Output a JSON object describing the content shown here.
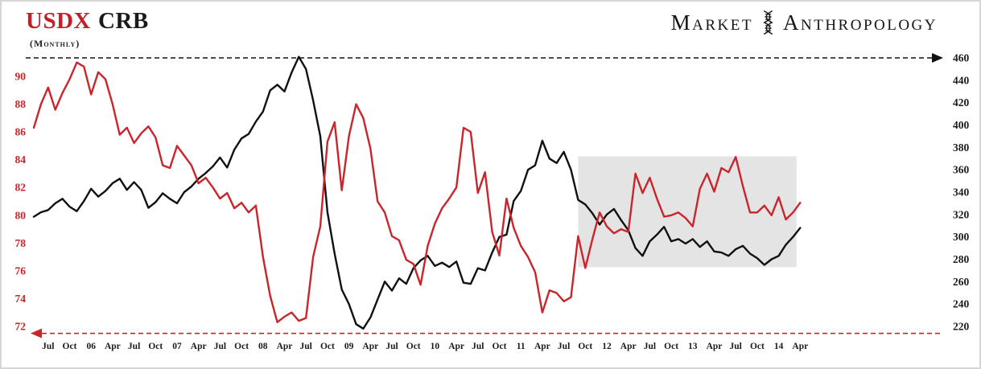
{
  "header": {
    "title_primary": "USDX",
    "title_secondary": "CRB",
    "subtitle": "(Monthly)",
    "logo": {
      "market": "Market",
      "anthropology": "Anthropology",
      "icon": "dna-icon"
    }
  },
  "chart_data": {
    "type": "line",
    "title": "USDX vs CRB (Monthly)",
    "start_month": "2005-05",
    "end_month": "2014-04",
    "grid": false,
    "legend": "none (series colors match title words)",
    "x_ticks": [
      [
        2,
        "Jul"
      ],
      [
        5,
        "Oct"
      ],
      [
        8,
        "06"
      ],
      [
        11,
        "Apr"
      ],
      [
        14,
        "Jul"
      ],
      [
        17,
        "Oct"
      ],
      [
        20,
        "07"
      ],
      [
        23,
        "Apr"
      ],
      [
        26,
        "Jul"
      ],
      [
        29,
        "Oct"
      ],
      [
        32,
        "08"
      ],
      [
        35,
        "Apr"
      ],
      [
        38,
        "Jul"
      ],
      [
        41,
        "Oct"
      ],
      [
        44,
        "09"
      ],
      [
        47,
        "Apr"
      ],
      [
        50,
        "Jul"
      ],
      [
        53,
        "Oct"
      ],
      [
        56,
        "10"
      ],
      [
        59,
        "Apr"
      ],
      [
        62,
        "Jul"
      ],
      [
        65,
        "Oct"
      ],
      [
        68,
        "11"
      ],
      [
        71,
        "Apr"
      ],
      [
        74,
        "Jul"
      ],
      [
        77,
        "Oct"
      ],
      [
        80,
        "12"
      ],
      [
        83,
        "Apr"
      ],
      [
        86,
        "Jul"
      ],
      [
        89,
        "Oct"
      ],
      [
        92,
        "13"
      ],
      [
        95,
        "Apr"
      ],
      [
        98,
        "Jul"
      ],
      [
        101,
        "Oct"
      ],
      [
        104,
        "14"
      ],
      [
        107,
        "Apr"
      ]
    ],
    "left_axis": {
      "name": "USDX",
      "color": "#c9252b",
      "min": 72,
      "max": 90,
      "tick_step": 2,
      "ticks": [
        90,
        88,
        86,
        84,
        82,
        80,
        78,
        76,
        74,
        72
      ]
    },
    "right_axis": {
      "name": "CRB",
      "color": "#1b1b1b",
      "min": 220,
      "max": 460,
      "tick_step": 20,
      "ticks": [
        460,
        440,
        420,
        400,
        380,
        360,
        340,
        320,
        300,
        280,
        260,
        240,
        220
      ]
    },
    "series": [
      {
        "name": "CRB",
        "axis": "right",
        "color": "#111111",
        "values": [
          318,
          322,
          324,
          330,
          334,
          327,
          323,
          332,
          343,
          336,
          341,
          348,
          352,
          342,
          349,
          342,
          326,
          331,
          339,
          334,
          330,
          340,
          345,
          352,
          357,
          363,
          371,
          362,
          378,
          388,
          392,
          403,
          412,
          431,
          436,
          430,
          447,
          461,
          450,
          422,
          390,
          322,
          285,
          253,
          240,
          222,
          218,
          228,
          244,
          260,
          252,
          263,
          258,
          272,
          279,
          283,
          274,
          277,
          273,
          278,
          259,
          258,
          272,
          270,
          286,
          300,
          302,
          332,
          341,
          360,
          364,
          386,
          370,
          366,
          376,
          360,
          333,
          329,
          321,
          311,
          320,
          325,
          315,
          306,
          290,
          283,
          296,
          302,
          309,
          296,
          298,
          294,
          298,
          291,
          296,
          287,
          286,
          283,
          289,
          292,
          285,
          281,
          275,
          280,
          283,
          293,
          300,
          308
        ]
      },
      {
        "name": "USDX",
        "axis": "left",
        "color": "#c9252b",
        "values": [
          86.3,
          88.0,
          89.2,
          87.6,
          88.8,
          89.8,
          91.0,
          90.7,
          88.7,
          90.3,
          89.8,
          88.0,
          85.8,
          86.3,
          85.2,
          85.9,
          86.4,
          85.6,
          83.6,
          83.4,
          85.0,
          84.3,
          83.6,
          82.3,
          82.7,
          82.0,
          81.2,
          81.6,
          80.5,
          80.9,
          80.2,
          80.7,
          77.0,
          74.2,
          72.3,
          72.7,
          73.0,
          72.4,
          72.6,
          77.0,
          79.2,
          85.3,
          86.7,
          81.8,
          85.7,
          88.0,
          87.0,
          84.8,
          81.0,
          80.2,
          78.5,
          78.2,
          76.8,
          76.5,
          75.0,
          77.8,
          79.4,
          80.5,
          81.2,
          82.0,
          86.3,
          86.0,
          81.6,
          83.1,
          78.8,
          77.1,
          81.2,
          79.1,
          77.8,
          77.0,
          75.9,
          73.0,
          74.6,
          74.4,
          73.8,
          74.1,
          78.5,
          76.2,
          78.3,
          80.2,
          79.2,
          78.7,
          79.0,
          78.8,
          83.0,
          81.6,
          82.7,
          81.2,
          79.9,
          80.0,
          80.2,
          79.8,
          79.2,
          81.9,
          83.0,
          81.7,
          83.4,
          83.1,
          84.2,
          82.1,
          80.2,
          80.2,
          80.7,
          80.0,
          81.3,
          79.7,
          80.2,
          80.9
        ]
      }
    ],
    "annotations": {
      "resistance_line": {
        "axis": "right",
        "value": 460,
        "style": "dashed",
        "color": "#111111",
        "arrow": "right"
      },
      "support_line": {
        "axis": "left",
        "value": 71.5,
        "style": "dashed",
        "color": "#c9252b",
        "arrow": "left"
      },
      "consolidation_box": {
        "start_index": 76,
        "end_index": 106.5,
        "top_right_axis": 372,
        "bottom_right_axis": 273,
        "fill": "#e4e4e4"
      }
    }
  }
}
